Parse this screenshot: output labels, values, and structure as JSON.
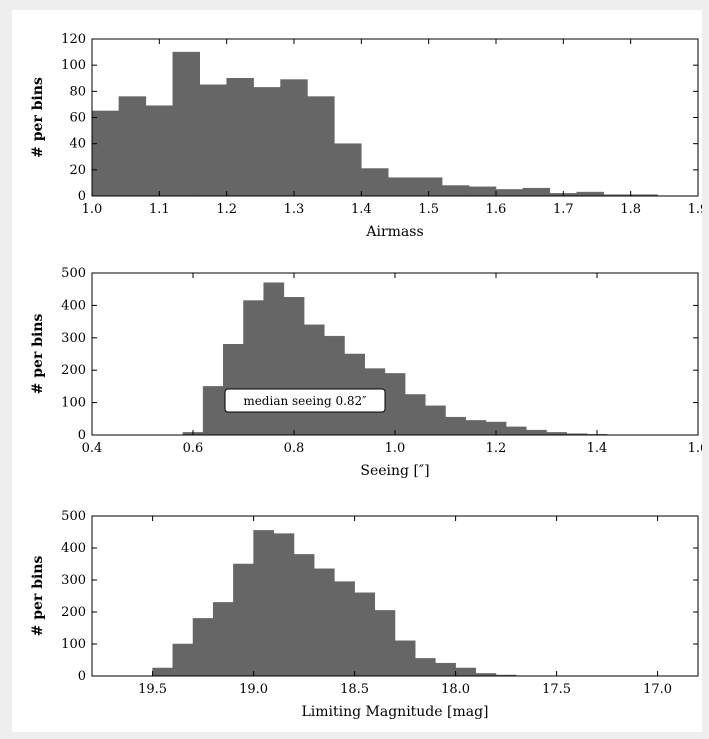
{
  "chart_data": [
    {
      "type": "bar",
      "xlabel": "Airmass",
      "ylabel": "# per bins",
      "xlim": [
        1.0,
        1.9
      ],
      "ylim": [
        0,
        120
      ],
      "xticks": [
        "1.0",
        "1.1",
        "1.2",
        "1.3",
        "1.4",
        "1.5",
        "1.6",
        "1.7",
        "1.8",
        "1.9"
      ],
      "yticks": [
        "0",
        "20",
        "40",
        "60",
        "80",
        "100",
        "120"
      ],
      "bin_width": 0.04,
      "bins": [
        {
          "x": 1.0,
          "value": 65
        },
        {
          "x": 1.04,
          "value": 76
        },
        {
          "x": 1.08,
          "value": 69
        },
        {
          "x": 1.12,
          "value": 110
        },
        {
          "x": 1.16,
          "value": 85
        },
        {
          "x": 1.2,
          "value": 90
        },
        {
          "x": 1.24,
          "value": 83
        },
        {
          "x": 1.28,
          "value": 89
        },
        {
          "x": 1.32,
          "value": 76
        },
        {
          "x": 1.36,
          "value": 40
        },
        {
          "x": 1.4,
          "value": 21
        },
        {
          "x": 1.44,
          "value": 14
        },
        {
          "x": 1.48,
          "value": 14
        },
        {
          "x": 1.52,
          "value": 8
        },
        {
          "x": 1.56,
          "value": 7
        },
        {
          "x": 1.6,
          "value": 5
        },
        {
          "x": 1.64,
          "value": 6
        },
        {
          "x": 1.68,
          "value": 2
        },
        {
          "x": 1.72,
          "value": 3
        },
        {
          "x": 1.76,
          "value": 1
        },
        {
          "x": 1.8,
          "value": 1
        }
      ]
    },
    {
      "type": "bar",
      "xlabel": "Seeing [″]",
      "ylabel": "# per bins",
      "xlim": [
        0.4,
        1.6
      ],
      "ylim": [
        0,
        500
      ],
      "xticks": [
        "0.4",
        "0.6",
        "0.8",
        "1.0",
        "1.2",
        "1.4",
        "1.6"
      ],
      "yticks": [
        "0",
        "100",
        "200",
        "300",
        "400",
        "500"
      ],
      "bin_width": 0.04,
      "bins": [
        {
          "x": 0.58,
          "value": 8
        },
        {
          "x": 0.62,
          "value": 150
        },
        {
          "x": 0.66,
          "value": 280
        },
        {
          "x": 0.7,
          "value": 415
        },
        {
          "x": 0.74,
          "value": 470
        },
        {
          "x": 0.78,
          "value": 425
        },
        {
          "x": 0.82,
          "value": 340
        },
        {
          "x": 0.86,
          "value": 305
        },
        {
          "x": 0.9,
          "value": 250
        },
        {
          "x": 0.94,
          "value": 205
        },
        {
          "x": 0.98,
          "value": 190
        },
        {
          "x": 1.02,
          "value": 125
        },
        {
          "x": 1.06,
          "value": 90
        },
        {
          "x": 1.1,
          "value": 55
        },
        {
          "x": 1.14,
          "value": 45
        },
        {
          "x": 1.18,
          "value": 40
        },
        {
          "x": 1.22,
          "value": 25
        },
        {
          "x": 1.26,
          "value": 15
        },
        {
          "x": 1.3,
          "value": 8
        },
        {
          "x": 1.34,
          "value": 4
        },
        {
          "x": 1.38,
          "value": 2
        }
      ],
      "annotation": "median seeing 0.82″"
    },
    {
      "type": "bar",
      "xlabel": "Limiting Magnitude [mag]",
      "ylabel": "# per bins",
      "xlim": [
        19.8,
        16.8
      ],
      "ylim": [
        0,
        500
      ],
      "xticks": [
        "19.5",
        "19.0",
        "18.5",
        "18.0",
        "17.5",
        "17.0"
      ],
      "yticks": [
        "0",
        "100",
        "200",
        "300",
        "400",
        "500"
      ],
      "bin_width": 0.1,
      "bins": [
        {
          "x": 19.5,
          "value": 25
        },
        {
          "x": 19.4,
          "value": 100
        },
        {
          "x": 19.3,
          "value": 180
        },
        {
          "x": 19.2,
          "value": 230
        },
        {
          "x": 19.1,
          "value": 350
        },
        {
          "x": 19.0,
          "value": 455
        },
        {
          "x": 18.9,
          "value": 445
        },
        {
          "x": 18.8,
          "value": 380
        },
        {
          "x": 18.7,
          "value": 335
        },
        {
          "x": 18.6,
          "value": 295
        },
        {
          "x": 18.5,
          "value": 260
        },
        {
          "x": 18.4,
          "value": 205
        },
        {
          "x": 18.3,
          "value": 110
        },
        {
          "x": 18.2,
          "value": 55
        },
        {
          "x": 18.1,
          "value": 40
        },
        {
          "x": 18.0,
          "value": 25
        },
        {
          "x": 17.9,
          "value": 8
        },
        {
          "x": 17.8,
          "value": 3
        }
      ]
    }
  ]
}
